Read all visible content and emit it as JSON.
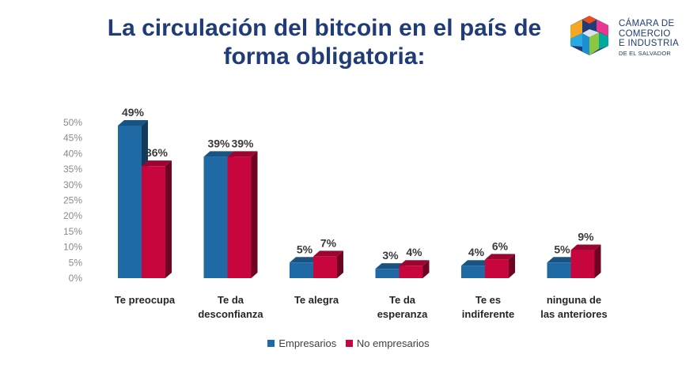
{
  "title": {
    "line1": "La circulación del bitcoin en el país de",
    "line2": "forma obligatoria:"
  },
  "logo": {
    "line1": "CÁMARA DE",
    "line2": "COMERCIO",
    "line3": "E INDUSTRIA",
    "line4": "DE EL SALVADOR"
  },
  "colors": {
    "empresarios": "#1f6aa5",
    "no_empresarios": "#c8063e",
    "title": "#1f3b78"
  },
  "chart_data": {
    "type": "bar",
    "title": "La circulación del bitcoin en el país de forma obligatoria:",
    "categories": [
      [
        "Te preocupa"
      ],
      [
        "Te da",
        "desconfianza"
      ],
      [
        "Te alegra"
      ],
      [
        "Te da",
        "esperanza"
      ],
      [
        "Te es",
        "indiferente"
      ],
      [
        "ninguna de",
        "las anteriores"
      ]
    ],
    "series": [
      {
        "name": "Empresarios",
        "values": [
          49,
          39,
          5,
          3,
          4,
          5
        ],
        "labels": [
          "49%",
          "39%",
          "5%",
          "3%",
          "4%",
          "5%"
        ]
      },
      {
        "name": "No empresarios",
        "values": [
          36,
          39,
          7,
          4,
          6,
          9
        ],
        "labels": [
          "36%",
          "39%",
          "7%",
          "4%",
          "6%",
          "9%"
        ]
      }
    ],
    "ylim": [
      0,
      50
    ],
    "yticks": [
      "0%",
      "5%",
      "10%",
      "15%",
      "20%",
      "25%",
      "30%",
      "35%",
      "40%",
      "45%",
      "50%"
    ],
    "xlabel": "",
    "ylabel": "",
    "legend": "bottom",
    "grid": false
  }
}
